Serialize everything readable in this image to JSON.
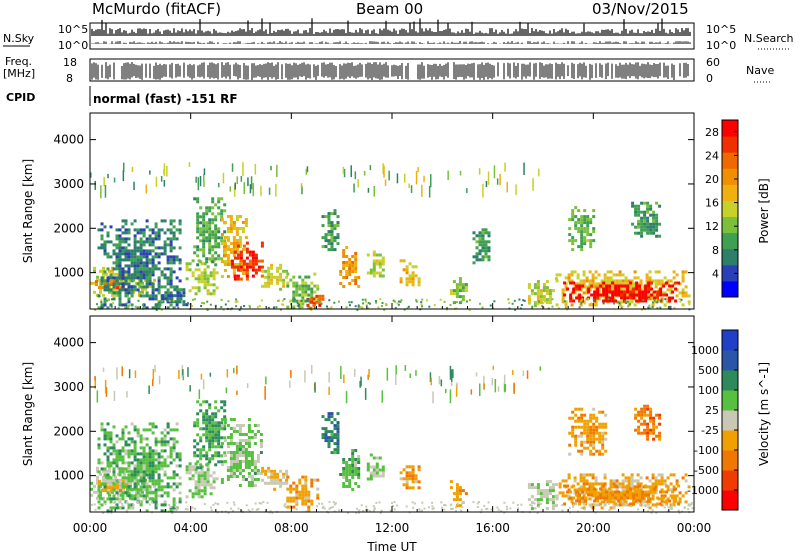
{
  "header": {
    "station": "McMurdo (fitACF)",
    "beam": "Beam 00",
    "date": "03/Nov/2015"
  },
  "top_panels": {
    "nsky_label": "N.Sky",
    "nsearch_label": "N.Search",
    "nsky_ticks": [
      "10^5",
      "10^0"
    ],
    "nsearch_ticks": [
      "10^5",
      "10^0"
    ],
    "freq_label": "Freq.",
    "freq_unit": "[MHz]",
    "freq_ticks": [
      "18",
      "8"
    ],
    "nave_label": "Nave",
    "nave_ticks": [
      "60",
      "0"
    ],
    "cpid_label": "CPID",
    "cpid_text": "normal (fast) -151 RF"
  },
  "chart_data": [
    {
      "type": "heatmap",
      "name": "power",
      "xlabel": "",
      "ylabel": "Slant Range [km]",
      "x_ticks": [
        "00:00",
        "04:00",
        "08:00",
        "12:00",
        "16:00",
        "20:00",
        "00:00"
      ],
      "y_ticks": [
        1000,
        2000,
        3000,
        4000
      ],
      "x_range_hours": [
        0,
        24
      ],
      "y_range_km": [
        180,
        4600
      ],
      "colorbar": {
        "label": "Power [dB]",
        "ticks": [
          4,
          8,
          12,
          16,
          20,
          24,
          28
        ],
        "range": [
          0,
          30
        ],
        "colors": [
          "#0000ff",
          "#2a3fb8",
          "#2e7f6a",
          "#3ea050",
          "#7ac03a",
          "#c8d02a",
          "#f0b010",
          "#f09000",
          "#f06800",
          "#f03000",
          "#ff0000"
        ]
      },
      "regions": [
        {
          "t0": 0.0,
          "t1": 2.6,
          "r0": 480,
          "r1": 1200,
          "v": 15
        },
        {
          "t0": 0.2,
          "t1": 1.5,
          "r0": 650,
          "r1": 900,
          "v": 23
        },
        {
          "t0": 0.3,
          "t1": 3.6,
          "r0": 200,
          "r1": 2200,
          "v": 7
        },
        {
          "t0": 2.6,
          "t1": 3.8,
          "r0": 300,
          "r1": 650,
          "v": 6
        },
        {
          "t0": 3.8,
          "t1": 5.0,
          "r0": 520,
          "r1": 1300,
          "v": 14
        },
        {
          "t0": 4.1,
          "t1": 5.4,
          "r0": 1200,
          "r1": 2700,
          "v": 10
        },
        {
          "t0": 5.2,
          "t1": 6.2,
          "r0": 900,
          "r1": 2300,
          "v": 17
        },
        {
          "t0": 5.6,
          "t1": 6.8,
          "r0": 800,
          "r1": 1700,
          "v": 26
        },
        {
          "t0": 6.8,
          "t1": 7.8,
          "r0": 650,
          "r1": 1200,
          "v": 15
        },
        {
          "t0": 7.8,
          "t1": 9.0,
          "r0": 250,
          "r1": 1000,
          "v": 12
        },
        {
          "t0": 8.6,
          "t1": 9.3,
          "r0": 200,
          "r1": 500,
          "v": 25
        },
        {
          "t0": 9.2,
          "t1": 9.9,
          "r0": 1500,
          "r1": 2500,
          "v": 9
        },
        {
          "t0": 9.9,
          "t1": 10.7,
          "r0": 700,
          "r1": 1600,
          "v": 20
        },
        {
          "t0": 11.0,
          "t1": 11.7,
          "r0": 900,
          "r1": 1500,
          "v": 14
        },
        {
          "t0": 12.3,
          "t1": 13.1,
          "r0": 700,
          "r1": 1300,
          "v": 17
        },
        {
          "t0": 14.3,
          "t1": 14.9,
          "r0": 300,
          "r1": 900,
          "v": 12
        },
        {
          "t0": 15.2,
          "t1": 15.8,
          "r0": 1200,
          "r1": 2000,
          "v": 9
        },
        {
          "t0": 17.4,
          "t1": 18.5,
          "r0": 280,
          "r1": 900,
          "v": 15
        },
        {
          "t0": 18.5,
          "t1": 23.8,
          "r0": 280,
          "r1": 1050,
          "v": 17
        },
        {
          "t0": 18.8,
          "t1": 23.4,
          "r0": 350,
          "r1": 800,
          "v": 29
        },
        {
          "t0": 19.0,
          "t1": 20.0,
          "r0": 1500,
          "r1": 2500,
          "v": 11
        },
        {
          "t0": 21.5,
          "t1": 22.6,
          "r0": 1800,
          "r1": 2600,
          "v": 9
        }
      ]
    },
    {
      "type": "heatmap",
      "name": "velocity",
      "xlabel": "Time UT",
      "ylabel": "Slant Range [km]",
      "x_ticks": [
        "00:00",
        "04:00",
        "08:00",
        "12:00",
        "16:00",
        "20:00",
        "00:00"
      ],
      "y_ticks": [
        1000,
        2000,
        3000,
        4000
      ],
      "x_range_hours": [
        0,
        24
      ],
      "y_range_km": [
        180,
        4600
      ],
      "colorbar": {
        "label": "Velocity [m s^-1]",
        "ticks": [
          1000,
          500,
          100,
          25,
          -25,
          -100,
          -500,
          -1000
        ],
        "range": [
          -1200,
          1200
        ],
        "colors": [
          "#ff0000",
          "#f03c00",
          "#f07800",
          "#f0a000",
          "#c8c8b4",
          "#58c040",
          "#2e8a5a",
          "#2a56a8",
          "#2040c8"
        ]
      },
      "regions": [
        {
          "t0": 0.0,
          "t1": 2.6,
          "r0": 480,
          "r1": 1200,
          "v": 120
        },
        {
          "t0": 0.2,
          "t1": 1.5,
          "r0": 650,
          "r1": 900,
          "v": -200
        },
        {
          "t0": 0.3,
          "t1": 3.6,
          "r0": 200,
          "r1": 2200,
          "v": 300
        },
        {
          "t0": 3.8,
          "t1": 5.0,
          "r0": 520,
          "r1": 1300,
          "v": 150
        },
        {
          "t0": 4.1,
          "t1": 5.4,
          "r0": 1200,
          "r1": 2700,
          "v": 400
        },
        {
          "t0": 5.2,
          "t1": 6.8,
          "r0": 800,
          "r1": 2300,
          "v": 200
        },
        {
          "t0": 6.8,
          "t1": 7.8,
          "r0": 650,
          "r1": 1200,
          "v": -120
        },
        {
          "t0": 7.8,
          "t1": 9.0,
          "r0": 250,
          "r1": 1000,
          "v": -300
        },
        {
          "t0": 9.2,
          "t1": 9.9,
          "r0": 1500,
          "r1": 2500,
          "v": 600
        },
        {
          "t0": 9.9,
          "t1": 10.7,
          "r0": 700,
          "r1": 1600,
          "v": 300
        },
        {
          "t0": 11.0,
          "t1": 11.7,
          "r0": 900,
          "r1": 1500,
          "v": 200
        },
        {
          "t0": 12.3,
          "t1": 13.1,
          "r0": 700,
          "r1": 1300,
          "v": -300
        },
        {
          "t0": 14.3,
          "t1": 14.9,
          "r0": 300,
          "r1": 900,
          "v": -300
        },
        {
          "t0": 17.4,
          "t1": 18.5,
          "r0": 280,
          "r1": 900,
          "v": 80
        },
        {
          "t0": 18.5,
          "t1": 23.8,
          "r0": 280,
          "r1": 1050,
          "v": -250
        },
        {
          "t0": 18.8,
          "t1": 23.4,
          "r0": 350,
          "r1": 800,
          "v": -350
        },
        {
          "t0": 19.0,
          "t1": 20.5,
          "r0": 1500,
          "r1": 2600,
          "v": -300
        },
        {
          "t0": 21.5,
          "t1": 22.6,
          "r0": 1800,
          "r1": 2600,
          "v": -500
        }
      ]
    }
  ]
}
